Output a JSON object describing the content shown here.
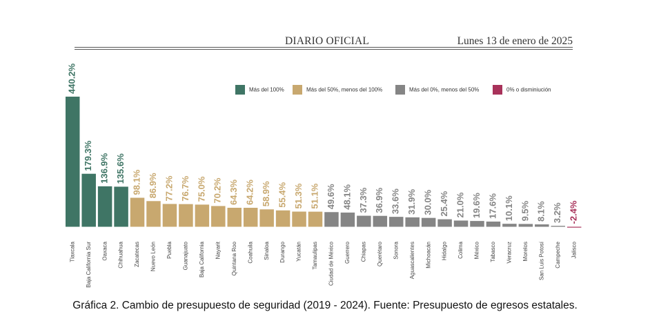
{
  "header": {
    "publication": "DIARIO OFICIAL",
    "date": "Lunes 13 de enero de 2025"
  },
  "caption": "Gráfica 2. Cambio de presupuesto de seguridad (2019 - 2024). Fuente: Presupuesto de egresos estatales.",
  "colors": {
    "over100": "#3f7565",
    "from50to100": "#c8a86f",
    "from0to50": "#858585",
    "negative": "#a8325a"
  },
  "chart_data": {
    "type": "bar",
    "title": "",
    "xlabel": "",
    "ylabel": "",
    "ylim": [
      -10,
      440.2
    ],
    "grid": false,
    "legend_position": "top-right",
    "legend": [
      {
        "label": "Más del 100%",
        "color_key": "over100"
      },
      {
        "label": "Más del 50%, menos del 100%",
        "color_key": "from50to100"
      },
      {
        "label": "Más del 0%, menos del 50%",
        "color_key": "from0to50"
      },
      {
        "label": "0% o disminiución",
        "color_key": "negative"
      }
    ],
    "categories": [
      "Tlaxcala",
      "Baja California Sur",
      "Oaxaca",
      "Chihuahua",
      "Zacatecas",
      "Nuevo León",
      "Puebla",
      "Guanajuato",
      "Baja California",
      "Nayarit",
      "Quintana Roo",
      "Coahuila",
      "Sinaloa",
      "Durango",
      "Yucatán",
      "Tamaulipas",
      "Ciudad de México",
      "Guerrero",
      "Chiapas",
      "Querétaro",
      "Sonora",
      "Aguascalientes",
      "Michoacán",
      "Hidalgo",
      "Colima",
      "México",
      "Tabasco",
      "Veracruz",
      "Morelos",
      "San Luis Potosí",
      "Campeche",
      "Jalisco"
    ],
    "values": [
      440.2,
      179.3,
      136.9,
      135.6,
      98.1,
      86.9,
      77.2,
      76.7,
      75.0,
      70.2,
      64.3,
      64.2,
      58.9,
      55.4,
      51.3,
      51.1,
      49.6,
      48.1,
      37.3,
      36.9,
      33.6,
      31.9,
      30.0,
      25.4,
      21.0,
      19.6,
      17.6,
      10.1,
      9.5,
      8.1,
      3.2,
      -2.4
    ],
    "data_labels": [
      "440.2%",
      "179.3%",
      "136.9%",
      "135.6%",
      "98.1%",
      "86.9%",
      "77.2%",
      "76.7%",
      "75.0%",
      "70.2%",
      "64.3%",
      "64.2%",
      "58.9%",
      "55.4%",
      "51.3%",
      "51.1%",
      "49.6%",
      "48.1%",
      "37.3%",
      "36.9%",
      "33.6%",
      "31.9%",
      "30.0%",
      "25.4%",
      "21.0%",
      "19.6%",
      "17.6%",
      "10.1%",
      "9.5%",
      "8.1%",
      "3.2%",
      "-2.4%"
    ]
  }
}
